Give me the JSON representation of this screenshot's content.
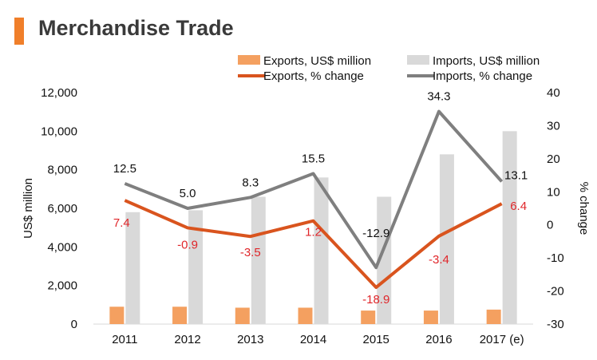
{
  "title": "Merchandise Trade",
  "colors": {
    "accent": "#f07f2a",
    "exports_bar": "#f4a060",
    "imports_bar": "#d9d9d9",
    "exports_line": "#d9541e",
    "imports_line": "#7f7f7f",
    "export_label": "#e0262a"
  },
  "chart_data": {
    "type": "bar",
    "categories": [
      "2011",
      "2012",
      "2013",
      "2014",
      "2015",
      "2016",
      "2017 (e)"
    ],
    "series": [
      {
        "name": "Exports, US$ million",
        "kind": "bar",
        "axis": "left",
        "values": [
          900,
          900,
          850,
          850,
          700,
          700,
          750
        ]
      },
      {
        "name": "Imports, US$ million",
        "kind": "bar",
        "axis": "left",
        "values": [
          5800,
          5900,
          6600,
          7600,
          6600,
          8800,
          10000
        ]
      },
      {
        "name": "Exports, % change",
        "kind": "line",
        "axis": "right",
        "values": [
          7.4,
          -0.9,
          -3.5,
          1.2,
          -18.9,
          -3.4,
          6.4
        ]
      },
      {
        "name": "Imports, % change",
        "kind": "line",
        "axis": "right",
        "values": [
          12.5,
          5.0,
          8.3,
          15.5,
          -12.9,
          34.3,
          13.1
        ]
      }
    ],
    "data_labels": {
      "exports_pct": [
        "7.4",
        "-0.9",
        "-3.5",
        "1.2",
        "-18.9",
        "-3.4",
        "6.4"
      ],
      "imports_pct": [
        "12.5",
        "5.0",
        "8.3",
        "15.5",
        "-12.9",
        "34.3",
        "13.1"
      ]
    },
    "ylabel": "US$ million",
    "y2label": "% change",
    "ylim": [
      0,
      12000
    ],
    "y2lim": [
      -30,
      40
    ],
    "yticks": [
      "0",
      "2,000",
      "4,000",
      "6,000",
      "8,000",
      "10,000",
      "12,000"
    ],
    "y2ticks": [
      "-30",
      "-20",
      "-10",
      "0",
      "10",
      "20",
      "30",
      "40"
    ],
    "legend_position": "top",
    "grid": false
  }
}
